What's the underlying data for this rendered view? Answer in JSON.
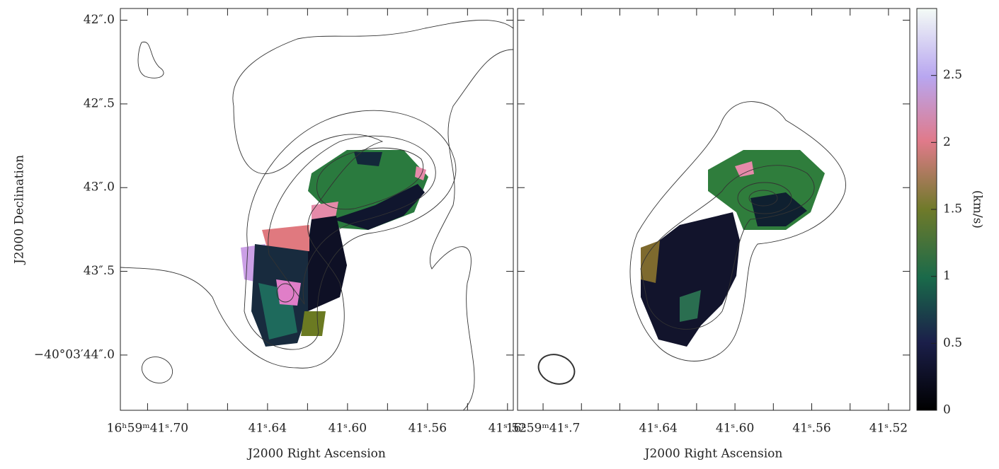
{
  "y_axis_label": "J2000 Declination",
  "ylim": [
    41.93,
    44.33
  ],
  "yticks": [
    {
      "value": 42.0,
      "label": "42″.0"
    },
    {
      "value": 42.5,
      "label": "42″.5"
    },
    {
      "value": 43.0,
      "label": "43″.0"
    },
    {
      "value": 43.5,
      "label": "43″.5"
    },
    {
      "value": 44.0,
      "label": "−40°03′44″.0"
    }
  ],
  "panels": [
    {
      "x_axis_label": "J2000 Right Ascension",
      "xlim": [
        41.7136,
        41.5171
      ],
      "xticks": [
        {
          "value": 41.7,
          "label": "16ʰ59ᵐ41ˢ.70"
        },
        {
          "value": 41.64,
          "label": "41ˢ.64"
        },
        {
          "value": 41.6,
          "label": "41ˢ.60"
        },
        {
          "value": 41.56,
          "label": "41ˢ.56"
        },
        {
          "value": 41.52,
          "label": "41ˢ.52"
        }
      ],
      "xminor": [
        41.68,
        41.66,
        41.62,
        41.58,
        41.54
      ]
    },
    {
      "x_axis_label": "J2000 Right Ascension",
      "xlim": [
        41.7133,
        41.5089
      ],
      "xticks": [
        {
          "value": 41.7,
          "label": "16ʰ59ᵐ41ˢ.7"
        },
        {
          "value": 41.64,
          "label": "41ˢ.64"
        },
        {
          "value": 41.6,
          "label": "41ˢ.60"
        },
        {
          "value": 41.56,
          "label": "41ˢ.56"
        },
        {
          "value": 41.52,
          "label": "41ˢ.52"
        }
      ],
      "xminor": [
        41.68,
        41.66,
        41.62,
        41.58,
        41.54
      ]
    }
  ],
  "colorbar": {
    "label": "(km/s)",
    "lim": [
      0,
      3
    ],
    "ticks": [
      0,
      0.5,
      1,
      1.5,
      2,
      2.5
    ]
  }
}
